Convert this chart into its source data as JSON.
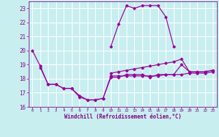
{
  "xlabel": "Windchill (Refroidissement éolien,°C)",
  "background_color": "#c8eef0",
  "line_color": "#990099",
  "grid_color": "#ffffff",
  "xlim": [
    -0.5,
    23.5
  ],
  "ylim": [
    16,
    23.5
  ],
  "xticks": [
    0,
    1,
    2,
    3,
    4,
    5,
    6,
    7,
    8,
    9,
    10,
    11,
    12,
    13,
    14,
    15,
    16,
    17,
    18,
    19,
    20,
    21,
    22,
    23
  ],
  "yticks": [
    16,
    17,
    18,
    19,
    20,
    21,
    22,
    23
  ],
  "series": [
    [
      20.0,
      18.9,
      17.6,
      17.6,
      17.3,
      17.3,
      16.7,
      16.5,
      16.5,
      16.6,
      18.1,
      18.1,
      18.3,
      18.3,
      18.3,
      18.1,
      18.3,
      18.3,
      18.3,
      19.0,
      18.5,
      18.5,
      18.5,
      18.6
    ],
    [
      null,
      18.8,
      17.6,
      17.6,
      17.3,
      17.3,
      16.8,
      16.5,
      16.5,
      16.6,
      18.2,
      null,
      null,
      null,
      null,
      null,
      null,
      null,
      null,
      null,
      null,
      null,
      null,
      null
    ],
    [
      null,
      null,
      null,
      null,
      null,
      null,
      null,
      null,
      null,
      null,
      20.3,
      21.9,
      23.2,
      23.0,
      23.2,
      23.2,
      23.2,
      22.4,
      20.3,
      null,
      null,
      null,
      null,
      null
    ],
    [
      null,
      null,
      null,
      null,
      null,
      null,
      null,
      null,
      null,
      null,
      18.4,
      18.5,
      18.6,
      18.7,
      18.8,
      18.9,
      19.0,
      19.1,
      19.2,
      19.4,
      18.5,
      18.5,
      18.5,
      18.6
    ],
    [
      null,
      null,
      null,
      null,
      null,
      null,
      null,
      null,
      null,
      null,
      18.2,
      18.2,
      18.2,
      18.2,
      18.2,
      18.2,
      18.2,
      18.3,
      18.3,
      18.3,
      18.4,
      18.4,
      18.4,
      18.5
    ]
  ]
}
